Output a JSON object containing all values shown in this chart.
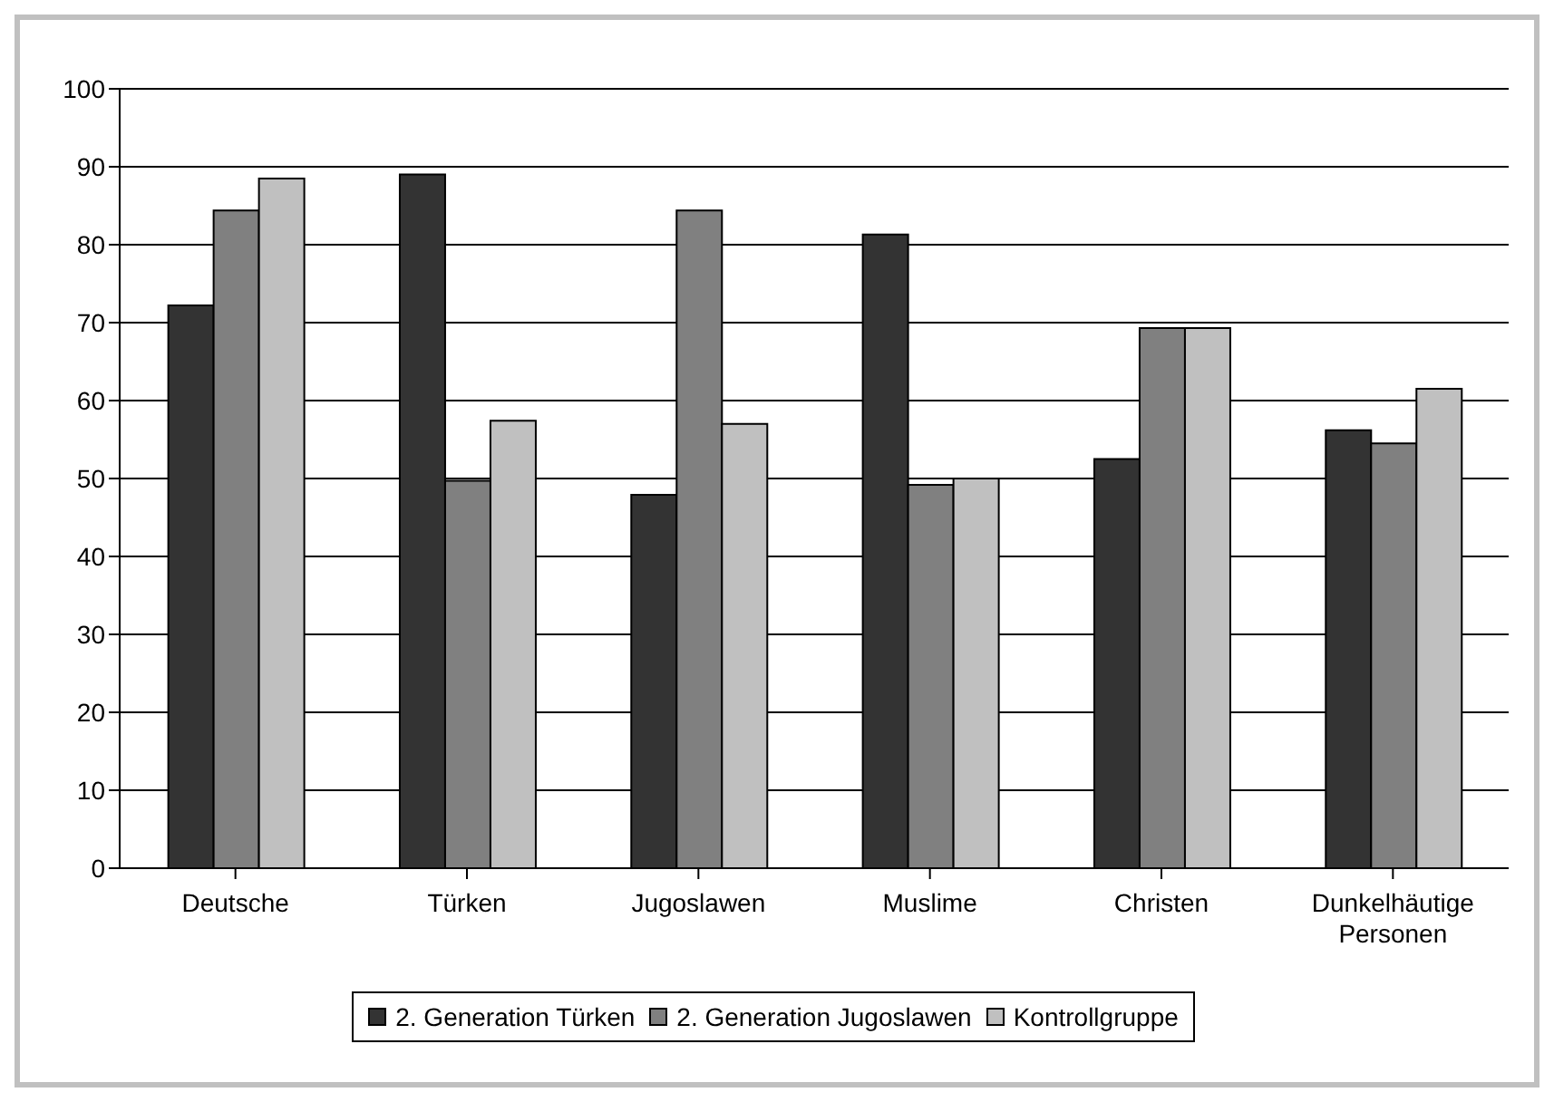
{
  "chart_data": {
    "type": "bar",
    "categories": [
      "Deutsche",
      "Türken",
      "Jugoslawen",
      "Muslime",
      "Christen",
      "Dunkelhäutige Personen"
    ],
    "series": [
      {
        "name": "2. Generation Türken",
        "color": "#333333",
        "values": [
          72.2,
          89.0,
          47.9,
          81.3,
          52.5,
          56.2
        ]
      },
      {
        "name": "2. Generation Jugoslawen",
        "color": "#808080",
        "values": [
          84.4,
          49.7,
          84.4,
          49.2,
          69.3,
          54.5
        ]
      },
      {
        "name": "Kontrollgruppe",
        "color": "#c0c0c0",
        "values": [
          88.5,
          57.4,
          57.0,
          50.0,
          69.3,
          61.5
        ]
      }
    ],
    "ylim": [
      0,
      100
    ],
    "yticks": [
      0,
      10,
      20,
      30,
      40,
      50,
      60,
      70,
      80,
      90,
      100
    ],
    "grid": "y",
    "legend": "bottom"
  }
}
